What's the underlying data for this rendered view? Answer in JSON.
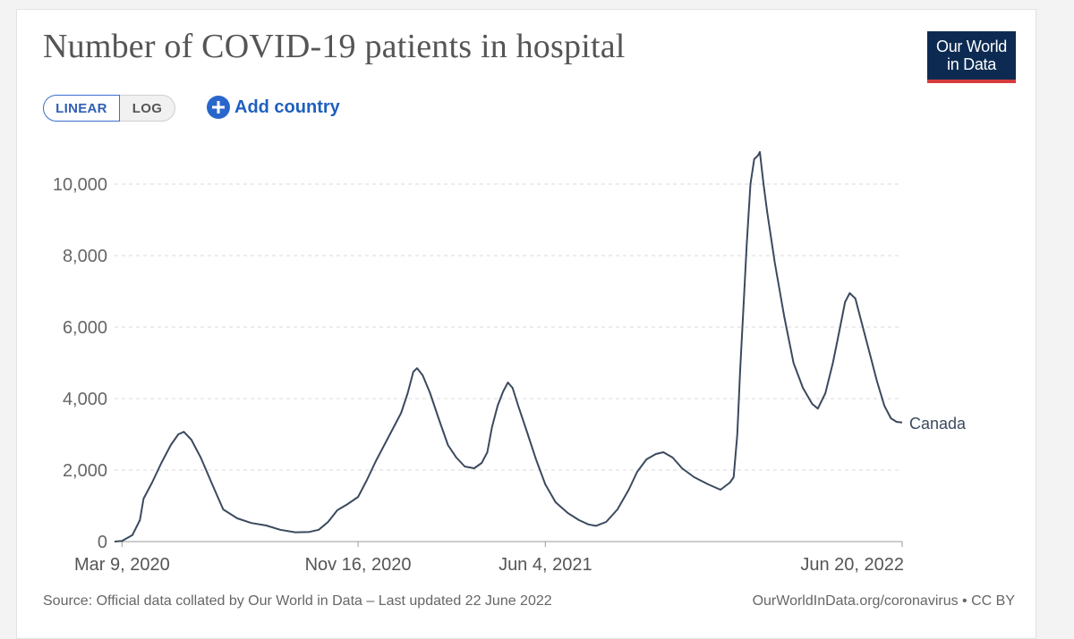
{
  "title": "Number of COVID-19 patients in hospital",
  "logo": {
    "line1": "Our World",
    "line2": "in Data",
    "bg_color": "#0d2b52",
    "accent_color": "#d63b3b"
  },
  "controls": {
    "linear_label": "LINEAR",
    "log_label": "LOG",
    "add_country_label": "Add country",
    "selected_scale": "LINEAR"
  },
  "footer": {
    "source": "Source: Official data collated by Our World in Data – Last updated 22 June 2022",
    "link": "OurWorldInData.org/coronavirus • CC BY"
  },
  "chart_data": {
    "type": "line",
    "title": "Number of COVID-19 patients in hospital",
    "xlabel": "",
    "ylabel": "",
    "ylim": [
      0,
      10000
    ],
    "yticks": [
      0,
      2000,
      4000,
      6000,
      8000,
      10000
    ],
    "ytick_labels": [
      "0",
      "2,000",
      "4,000",
      "6,000",
      "8,000",
      "10,000"
    ],
    "xticks": [
      "Mar 9, 2020",
      "Nov 16, 2020",
      "Jun 4, 2021",
      "Jun 20, 2022"
    ],
    "grid": "horizontal dashed",
    "line_color": "#3b4a5e",
    "series": [
      {
        "name": "Canada",
        "points": [
          [
            "2020-03-01",
            0
          ],
          [
            "2020-03-09",
            20
          ],
          [
            "2020-03-20",
            180
          ],
          [
            "2020-03-28",
            600
          ],
          [
            "2020-04-01",
            1200
          ],
          [
            "2020-04-10",
            1650
          ],
          [
            "2020-04-20",
            2200
          ],
          [
            "2020-04-30",
            2700
          ],
          [
            "2020-05-08",
            3000
          ],
          [
            "2020-05-14",
            3070
          ],
          [
            "2020-05-22",
            2850
          ],
          [
            "2020-06-01",
            2350
          ],
          [
            "2020-06-15",
            1500
          ],
          [
            "2020-06-25",
            900
          ],
          [
            "2020-07-10",
            650
          ],
          [
            "2020-07-25",
            520
          ],
          [
            "2020-08-10",
            450
          ],
          [
            "2020-08-25",
            330
          ],
          [
            "2020-09-10",
            260
          ],
          [
            "2020-09-25",
            270
          ],
          [
            "2020-10-05",
            330
          ],
          [
            "2020-10-15",
            550
          ],
          [
            "2020-10-25",
            880
          ],
          [
            "2020-11-05",
            1050
          ],
          [
            "2020-11-16",
            1250
          ],
          [
            "2020-11-25",
            1700
          ],
          [
            "2020-12-05",
            2250
          ],
          [
            "2020-12-15",
            2750
          ],
          [
            "2020-12-25",
            3250
          ],
          [
            "2021-01-01",
            3600
          ],
          [
            "2021-01-08",
            4150
          ],
          [
            "2021-01-14",
            4750
          ],
          [
            "2021-01-18",
            4850
          ],
          [
            "2021-01-24",
            4650
          ],
          [
            "2021-02-01",
            4150
          ],
          [
            "2021-02-10",
            3450
          ],
          [
            "2021-02-20",
            2700
          ],
          [
            "2021-03-01",
            2350
          ],
          [
            "2021-03-10",
            2100
          ],
          [
            "2021-03-20",
            2050
          ],
          [
            "2021-03-28",
            2200
          ],
          [
            "2021-04-03",
            2500
          ],
          [
            "2021-04-08",
            3200
          ],
          [
            "2021-04-14",
            3800
          ],
          [
            "2021-04-20",
            4200
          ],
          [
            "2021-04-25",
            4450
          ],
          [
            "2021-04-30",
            4300
          ],
          [
            "2021-05-06",
            3800
          ],
          [
            "2021-05-15",
            3100
          ],
          [
            "2021-05-25",
            2300
          ],
          [
            "2021-06-04",
            1600
          ],
          [
            "2021-06-15",
            1100
          ],
          [
            "2021-06-28",
            800
          ],
          [
            "2021-07-10",
            600
          ],
          [
            "2021-07-20",
            480
          ],
          [
            "2021-07-28",
            440
          ],
          [
            "2021-08-08",
            550
          ],
          [
            "2021-08-20",
            900
          ],
          [
            "2021-09-01",
            1450
          ],
          [
            "2021-09-10",
            1950
          ],
          [
            "2021-09-20",
            2300
          ],
          [
            "2021-09-30",
            2450
          ],
          [
            "2021-10-08",
            2500
          ],
          [
            "2021-10-18",
            2350
          ],
          [
            "2021-10-28",
            2050
          ],
          [
            "2021-11-10",
            1800
          ],
          [
            "2021-11-25",
            1600
          ],
          [
            "2021-12-08",
            1450
          ],
          [
            "2021-12-18",
            1650
          ],
          [
            "2021-12-22",
            1800
          ],
          [
            "2021-12-26",
            3000
          ],
          [
            "2021-12-29",
            4800
          ],
          [
            "2022-01-02",
            6800
          ],
          [
            "2022-01-05",
            8300
          ],
          [
            "2022-01-09",
            10000
          ],
          [
            "2022-01-13",
            10700
          ],
          [
            "2022-01-17",
            10800
          ],
          [
            "2022-01-19",
            10900
          ],
          [
            "2022-01-23",
            10000
          ],
          [
            "2022-01-27",
            9200
          ],
          [
            "2022-02-04",
            7800
          ],
          [
            "2022-02-14",
            6300
          ],
          [
            "2022-02-24",
            5000
          ],
          [
            "2022-03-06",
            4300
          ],
          [
            "2022-03-16",
            3850
          ],
          [
            "2022-03-22",
            3720
          ],
          [
            "2022-03-30",
            4150
          ],
          [
            "2022-04-07",
            5000
          ],
          [
            "2022-04-14",
            5900
          ],
          [
            "2022-04-20",
            6700
          ],
          [
            "2022-04-25",
            6950
          ],
          [
            "2022-05-01",
            6800
          ],
          [
            "2022-05-08",
            6100
          ],
          [
            "2022-05-16",
            5300
          ],
          [
            "2022-05-24",
            4500
          ],
          [
            "2022-06-01",
            3800
          ],
          [
            "2022-06-08",
            3450
          ],
          [
            "2022-06-14",
            3350
          ],
          [
            "2022-06-20",
            3330
          ]
        ]
      }
    ]
  }
}
